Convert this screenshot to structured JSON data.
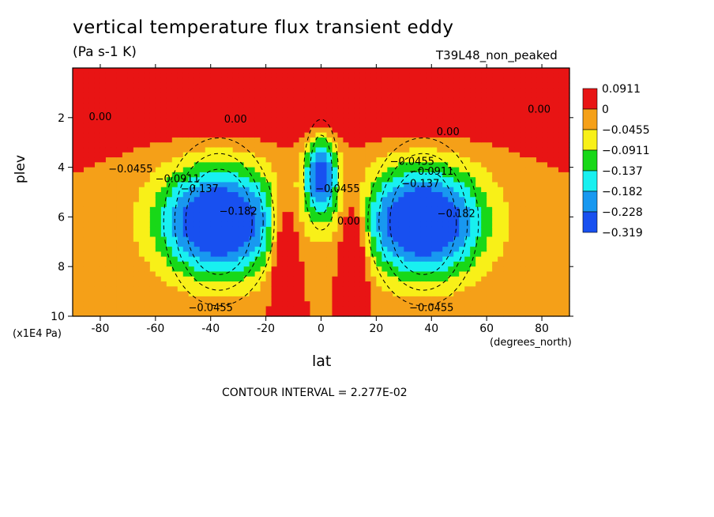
{
  "chart_data": {
    "type": "heatmap",
    "title": "vertical temperature flux transient eddy",
    "units": "(Pa s-1 K)",
    "run_label": "T39L48_non_peaked",
    "xlabel": "lat",
    "x_units": "(degrees_north)",
    "ylabel": "plev",
    "y_units": "(x1E4 Pa)",
    "xlim": [
      -90,
      90
    ],
    "ylim": [
      10,
      0
    ],
    "x_ticks": [
      -80,
      -60,
      -40,
      -20,
      0,
      20,
      40,
      60,
      80
    ],
    "y_ticks": [
      2,
      4,
      6,
      8,
      10
    ],
    "contour_interval_text": "CONTOUR INTERVAL = 2.277E-02",
    "legend": {
      "labels": [
        "0.0911",
        "0",
        "−0.0455",
        "−0.0911",
        "−0.137",
        "−0.182",
        "−0.228",
        "−0.319"
      ],
      "colors": [
        "#e81414",
        "#f5a018",
        "#f8f018",
        "#18d818",
        "#18f0f0",
        "#1898f0",
        "#1850f0"
      ]
    },
    "contour_labels": [
      {
        "text": "0.00",
        "lon": -80,
        "p": 2.1
      },
      {
        "text": "0.00",
        "lon": -31,
        "p": 2.2
      },
      {
        "text": "0.00",
        "lon": 46,
        "p": 2.7
      },
      {
        "text": "0.00",
        "lon": 79,
        "p": 1.8
      },
      {
        "text": "−0.0455",
        "lon": -69,
        "p": 4.2
      },
      {
        "text": "−0.0911",
        "lon": -52,
        "p": 4.6
      },
      {
        "text": "−0.137",
        "lon": -44,
        "p": 5.0
      },
      {
        "text": "−0.182",
        "lon": -30,
        "p": 5.9
      },
      {
        "text": "−0.0455",
        "lon": 33,
        "p": 3.9
      },
      {
        "text": "−0.0911",
        "lon": 40,
        "p": 4.3
      },
      {
        "text": "−0.137",
        "lon": 36,
        "p": 4.8
      },
      {
        "text": "−0.182",
        "lon": 49,
        "p": 6.0
      },
      {
        "text": "−0.0455",
        "lon": -40,
        "p": 9.8
      },
      {
        "text": "−0.0455",
        "lon": 40,
        "p": 9.8
      },
      {
        "text": "0.00",
        "lon": 10,
        "p": 6.3
      },
      {
        "text": "−0.0455",
        "lon": 6,
        "p": 5.0
      }
    ],
    "field_model": {
      "background": 0.0,
      "centers": [
        {
          "lon": -37,
          "p": 6.2,
          "amp": -0.33,
          "sx": 22,
          "sy": 2.2
        },
        {
          "lon": 37,
          "p": 6.2,
          "amp": -0.33,
          "sx": 22,
          "sy": 2.2
        },
        {
          "lon": 0,
          "p": 4.3,
          "amp": -0.25,
          "sx": 6,
          "sy": 1.6
        },
        {
          "lon": 0,
          "p": 0.5,
          "amp": 0.2,
          "sx": 200,
          "sy": 1.6
        },
        {
          "lon": -13,
          "p": 7.4,
          "amp": 0.15,
          "sx": 5,
          "sy": 2.4
        },
        {
          "lon": 12,
          "p": 7.4,
          "amp": 0.15,
          "sx": 5,
          "sy": 2.4
        }
      ]
    }
  }
}
